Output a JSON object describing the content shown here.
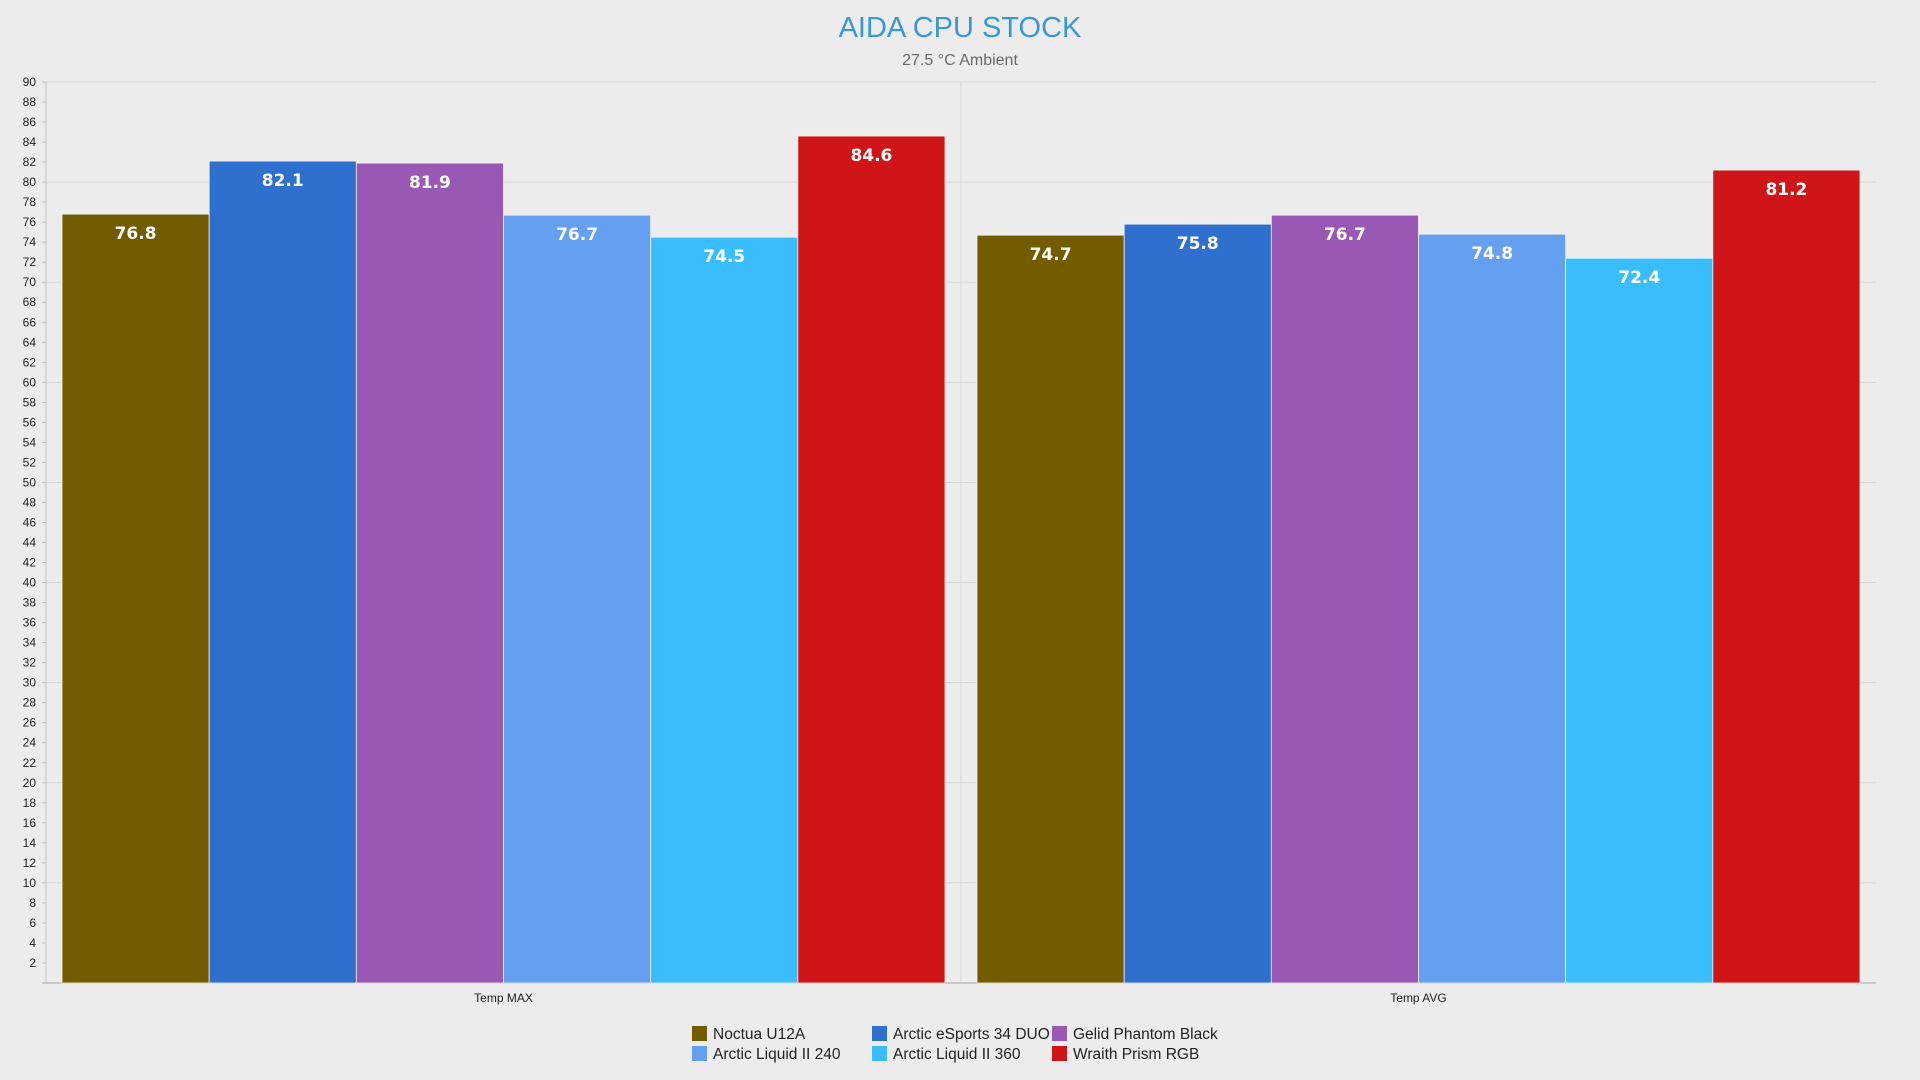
{
  "chart_data": {
    "type": "bar",
    "title": "AIDA CPU STOCK",
    "subtitle": "27.5 °C Ambient",
    "xlabel": "",
    "ylabel": "",
    "ylim": [
      0,
      90
    ],
    "ytick_step": 2,
    "grid": true,
    "legend_position": "bottom-center",
    "categories": [
      "Temp MAX",
      "Temp AVG"
    ],
    "series": [
      {
        "name": "Noctua U12A",
        "color": "#735b00",
        "values": [
          76.8,
          74.7
        ]
      },
      {
        "name": "Arctic eSports 34 DUO",
        "color": "#2f70cf",
        "values": [
          82.1,
          75.8
        ]
      },
      {
        "name": "Gelid Phantom Black",
        "color": "#9a58b5",
        "values": [
          81.9,
          76.7
        ]
      },
      {
        "name": "Arctic Liquid II 240",
        "color": "#659ff0",
        "values": [
          76.7,
          74.8
        ]
      },
      {
        "name": "Arctic Liquid II 360",
        "color": "#39bdfd",
        "values": [
          74.5,
          72.4
        ]
      },
      {
        "name": "Wraith Prism RGB",
        "color": "#cf1517",
        "values": [
          84.6,
          81.2
        ]
      }
    ]
  }
}
